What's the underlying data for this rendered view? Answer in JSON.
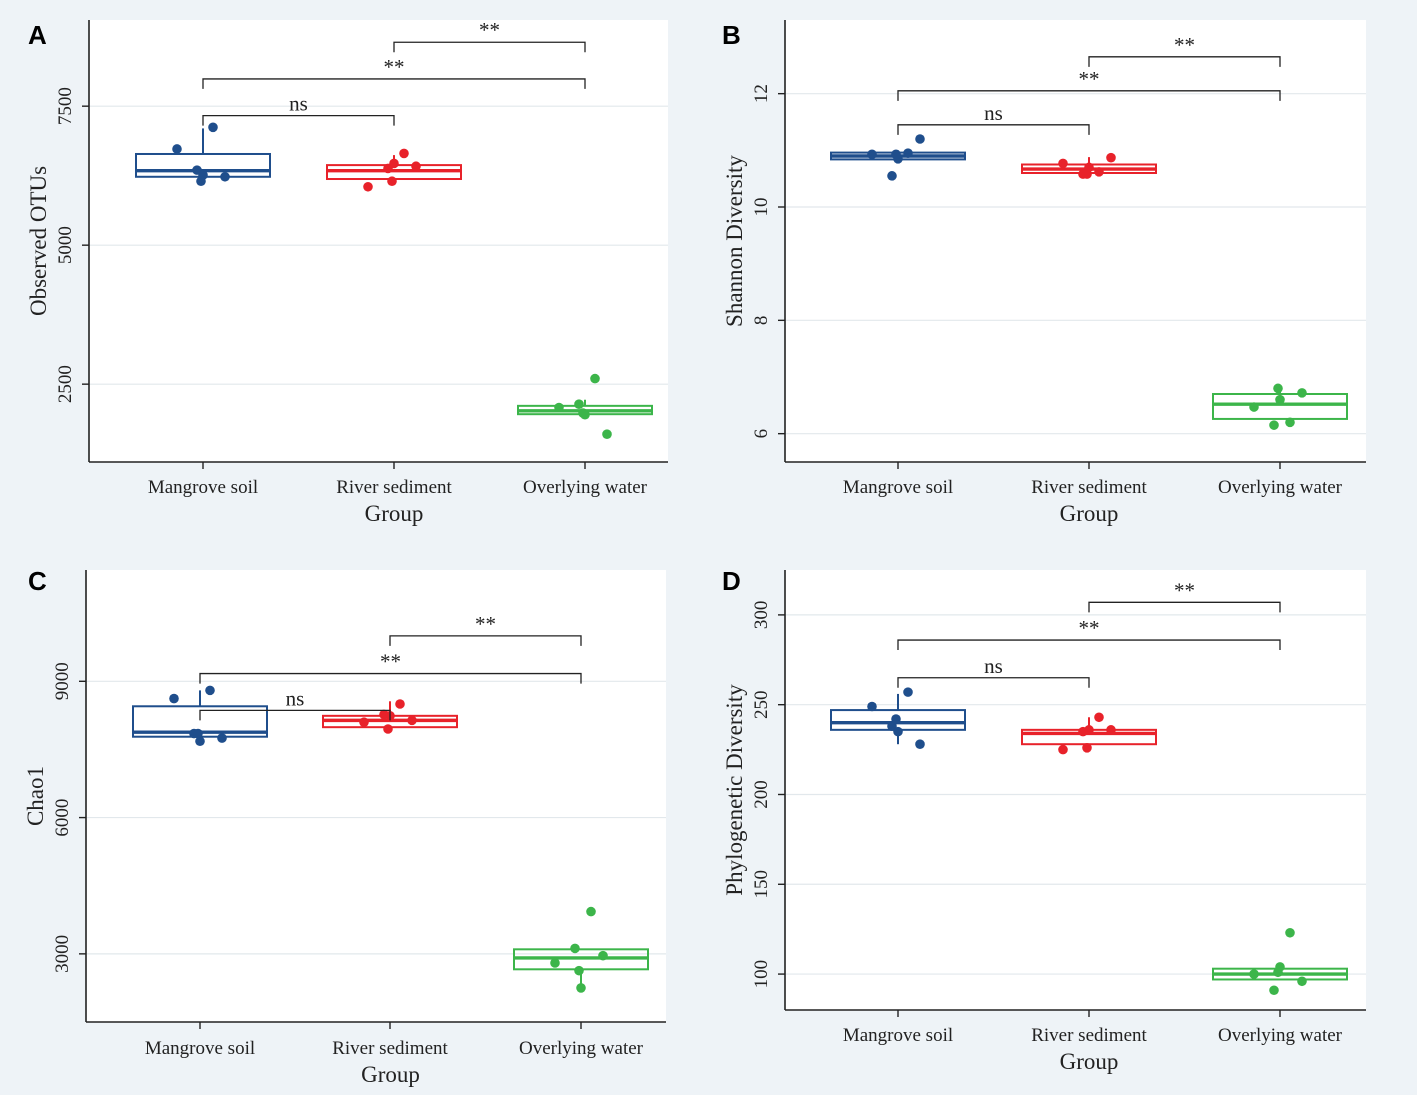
{
  "chart_data": [
    {
      "panel": "A",
      "type": "box",
      "categories": [
        "Mangrove soil",
        "River sediment",
        "Overlying water"
      ],
      "colors": [
        "#1f4e8c",
        "#e8222a",
        "#3cb54a"
      ],
      "xlabel": "Group",
      "ylabel": "Observed OTUs",
      "ylim": [
        1100,
        9050
      ],
      "yticks": [
        2500,
        5000,
        7500
      ],
      "ytick_labels": [
        "2500",
        "5000",
        "7500"
      ],
      "boxes": [
        {
          "q1": 6230,
          "median": 6340,
          "q3": 6640,
          "whisker_low": 6230,
          "whisker_high": 7100
        },
        {
          "q1": 6190,
          "median": 6340,
          "q3": 6440,
          "whisker_low": 6190,
          "whisker_high": 6620
        },
        {
          "q1": 1960,
          "median": 2020,
          "q3": 2110,
          "whisker_low": 1960,
          "whisker_high": 2220
        }
      ],
      "points": [
        [
          6730,
          6350,
          6260,
          6150,
          6230,
          7120
        ],
        [
          6050,
          6380,
          6470,
          6150,
          6420,
          6650
        ],
        [
          2080,
          2140,
          1950,
          1980,
          1600,
          2600
        ]
      ],
      "comparisons": [
        {
          "from": 0,
          "to": 1,
          "label": "ns",
          "y": 7330
        },
        {
          "from": 0,
          "to": 2,
          "label": "**",
          "y": 7990
        },
        {
          "from": 1,
          "to": 2,
          "label": "**",
          "y": 8650
        }
      ]
    },
    {
      "panel": "B",
      "type": "box",
      "categories": [
        "Mangrove soil",
        "River sediment",
        "Overlying water"
      ],
      "colors": [
        "#1f4e8c",
        "#e8222a",
        "#3cb54a"
      ],
      "xlabel": "Group",
      "ylabel": "Shannon Diversity",
      "ylim": [
        5.5,
        13.3
      ],
      "yticks": [
        6,
        8,
        10,
        12
      ],
      "ytick_labels": [
        "6",
        "8",
        "10",
        "12"
      ],
      "boxes": [
        {
          "q1": 10.84,
          "median": 10.9,
          "q3": 10.96,
          "whisker_low": 10.84,
          "whisker_high": 11.0
        },
        {
          "q1": 10.6,
          "median": 10.67,
          "q3": 10.75,
          "whisker_low": 10.6,
          "whisker_high": 10.88
        },
        {
          "q1": 6.26,
          "median": 6.52,
          "q3": 6.7,
          "whisker_low": 6.26,
          "whisker_high": 6.79
        }
      ],
      "points": [
        [
          10.93,
          10.55,
          10.85,
          10.93,
          11.2,
          10.95
        ],
        [
          10.77,
          10.58,
          10.7,
          10.58,
          10.87,
          10.62
        ],
        [
          6.47,
          6.15,
          6.6,
          6.8,
          6.72,
          6.2
        ]
      ],
      "comparisons": [
        {
          "from": 0,
          "to": 1,
          "label": "ns",
          "y": 11.45
        },
        {
          "from": 0,
          "to": 2,
          "label": "**",
          "y": 12.05
        },
        {
          "from": 1,
          "to": 2,
          "label": "**",
          "y": 12.65
        }
      ]
    },
    {
      "panel": "C",
      "type": "box",
      "categories": [
        "Mangrove soil",
        "River sediment",
        "Overlying water"
      ],
      "colors": [
        "#1f4e8c",
        "#e8222a",
        "#3cb54a"
      ],
      "xlabel": "Group",
      "ylabel": "Chao1",
      "ylim": [
        1500,
        11450
      ],
      "yticks": [
        3000,
        6000,
        9000
      ],
      "ytick_labels": [
        "3000",
        "6000",
        "9000"
      ],
      "boxes": [
        {
          "q1": 7780,
          "median": 7880,
          "q3": 8450,
          "whisker_low": 7780,
          "whisker_high": 8800
        },
        {
          "q1": 7990,
          "median": 8140,
          "q3": 8240,
          "whisker_low": 7990,
          "whisker_high": 8560
        },
        {
          "q1": 2660,
          "median": 2910,
          "q3": 3100,
          "whisker_low": 2260,
          "whisker_high": 3100
        }
      ],
      "points": [
        [
          8620,
          7850,
          7680,
          7850,
          7750,
          8800
        ],
        [
          8100,
          8270,
          8240,
          7950,
          8140,
          8500
        ],
        [
          2800,
          3120,
          2250,
          2630,
          2960,
          3930
        ]
      ],
      "comparisons": [
        {
          "from": 0,
          "to": 1,
          "label": "ns",
          "y": 8360
        },
        {
          "from": 0,
          "to": 2,
          "label": "**",
          "y": 9170
        },
        {
          "from": 1,
          "to": 2,
          "label": "**",
          "y": 10000
        }
      ]
    },
    {
      "panel": "D",
      "type": "box",
      "categories": [
        "Mangrove soil",
        "River sediment",
        "Overlying water"
      ],
      "colors": [
        "#1f4e8c",
        "#e8222a",
        "#3cb54a"
      ],
      "xlabel": "Group",
      "ylabel": "Phylogenetic Diversity",
      "ylim": [
        80,
        325
      ],
      "yticks": [
        100,
        150,
        200,
        250,
        300
      ],
      "ytick_labels": [
        "100",
        "150",
        "200",
        "250",
        "300"
      ],
      "boxes": [
        {
          "q1": 236,
          "median": 240,
          "q3": 247,
          "whisker_low": 228,
          "whisker_high": 256
        },
        {
          "q1": 228,
          "median": 234,
          "q3": 236,
          "whisker_low": 228,
          "whisker_high": 243
        },
        {
          "q1": 97,
          "median": 100,
          "q3": 103,
          "whisker_low": 97,
          "whisker_high": 103
        }
      ],
      "points": [
        [
          249,
          238,
          235,
          242,
          228,
          257
        ],
        [
          225,
          235,
          236,
          226,
          236,
          243
        ],
        [
          100,
          91,
          104,
          101,
          96,
          123
        ]
      ],
      "comparisons": [
        {
          "from": 0,
          "to": 1,
          "label": "ns",
          "y": 265
        },
        {
          "from": 0,
          "to": 2,
          "label": "**",
          "y": 286
        },
        {
          "from": 1,
          "to": 2,
          "label": "**",
          "y": 307
        }
      ]
    }
  ]
}
